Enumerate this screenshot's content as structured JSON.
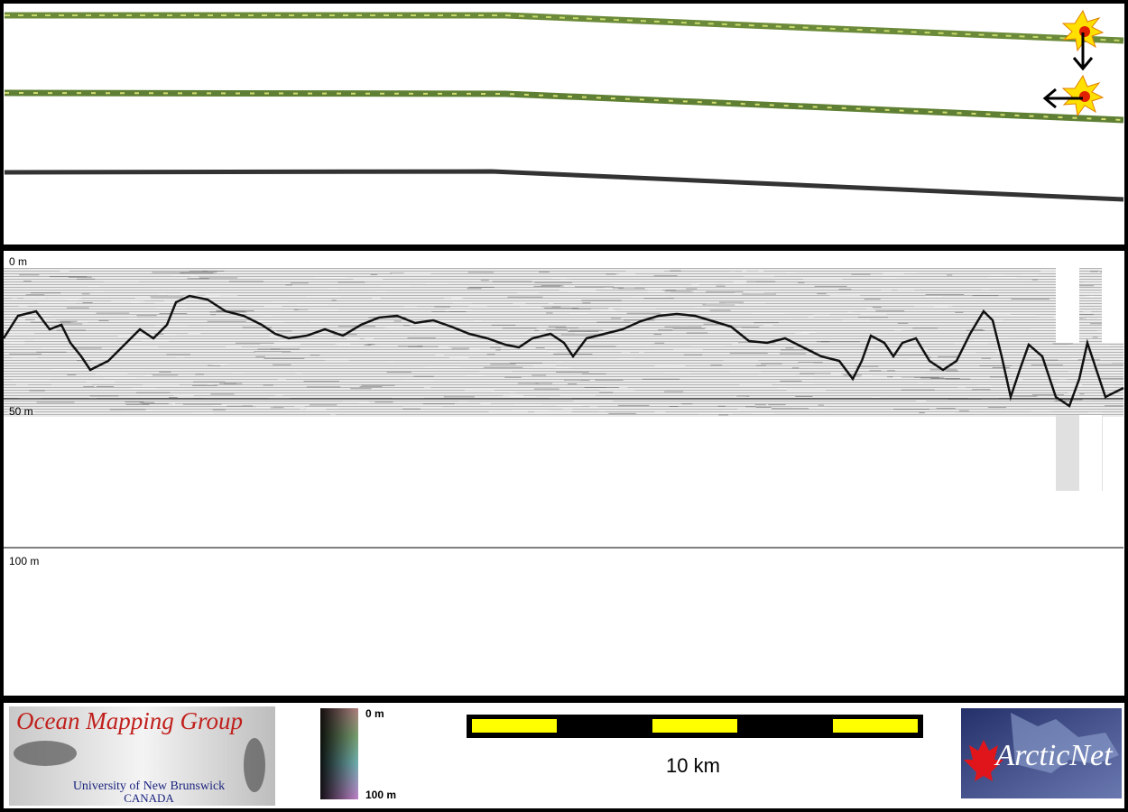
{
  "profile": {
    "depth_labels": [
      "0 m",
      "50 m",
      "100 m"
    ]
  },
  "logo": {
    "title": "Ocean Mapping Group",
    "university": "University of New Brunswick",
    "country": "CANADA"
  },
  "colorbar": {
    "top": "0 m",
    "bottom": "100 m"
  },
  "scale": {
    "label": "10 km"
  },
  "partner": {
    "label": "ArcticNet"
  }
}
